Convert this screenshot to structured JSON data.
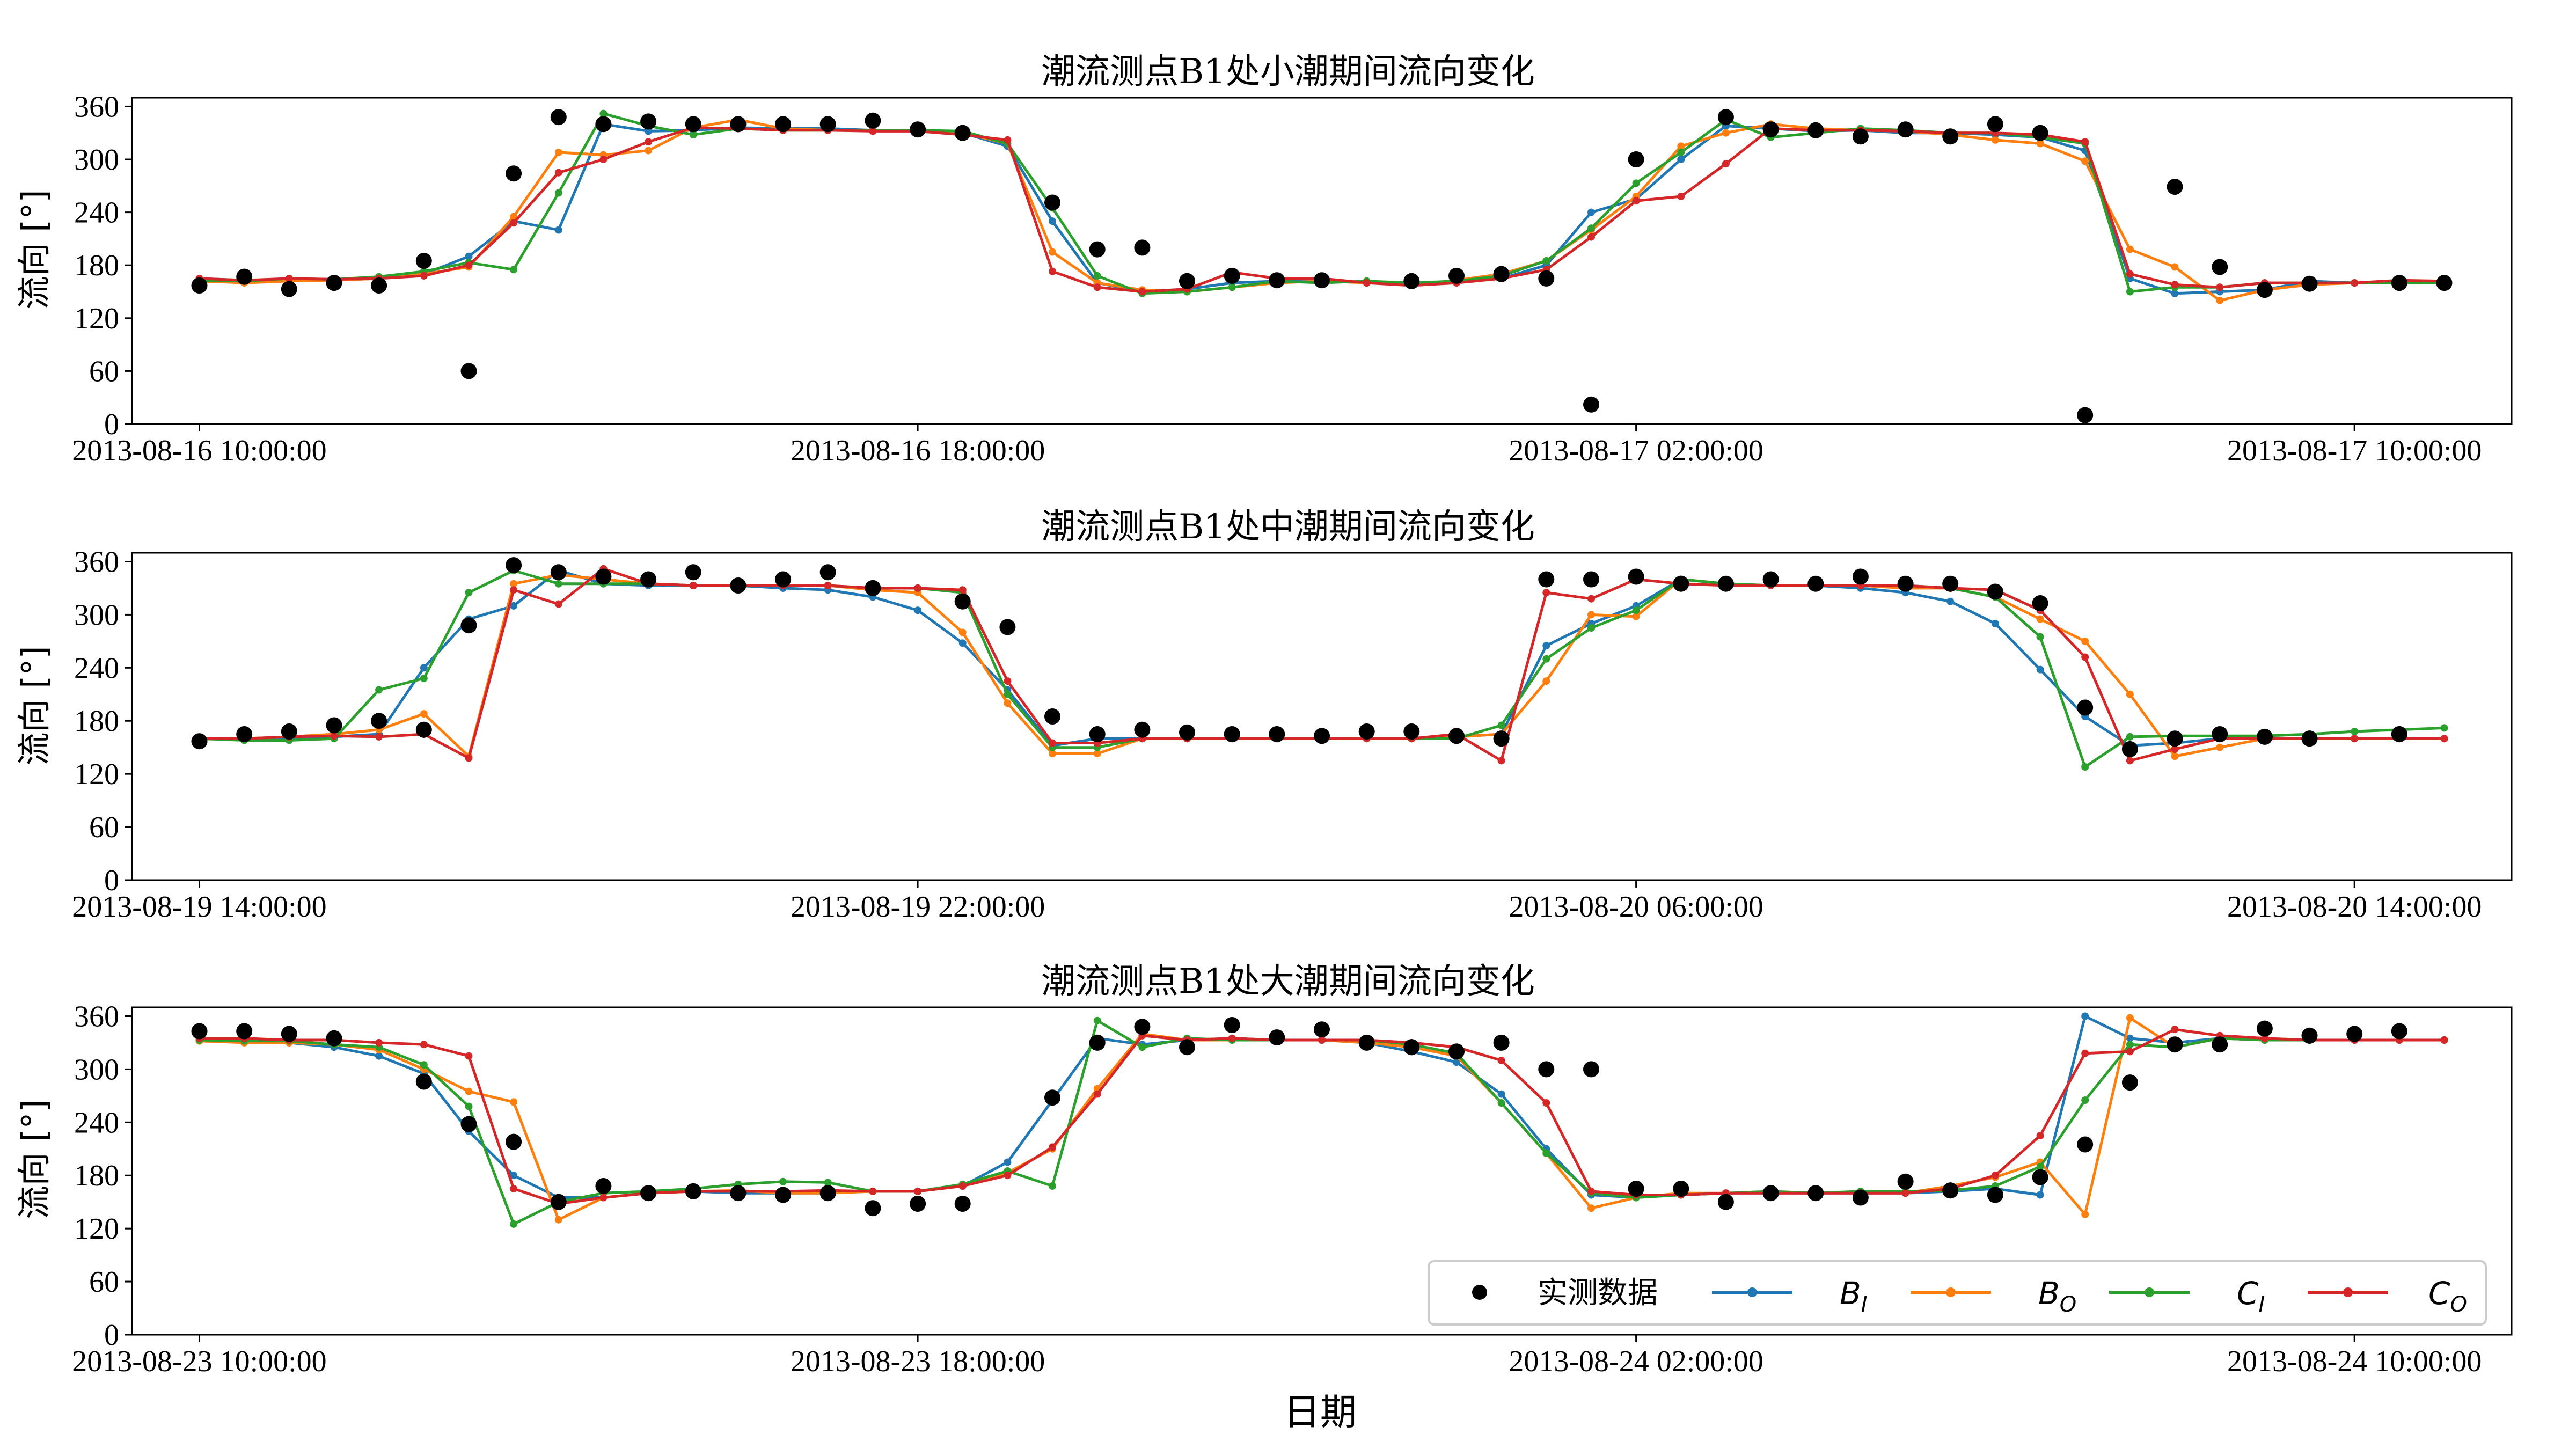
{
  "figure": {
    "xlabel": "日期",
    "ylabel": "流向 [°]",
    "colors": {
      "observed": "#000000",
      "B_I": "#1f77b4",
      "B_O": "#ff7f0e",
      "C_I": "#2ca02c",
      "C_O": "#d62728"
    },
    "legend": {
      "placement": "lower-right of third panel",
      "entries": [
        {
          "key": "observed",
          "label": "实测数据"
        },
        {
          "key": "B_I",
          "base": "B",
          "sub": "I"
        },
        {
          "key": "B_O",
          "base": "B",
          "sub": "O"
        },
        {
          "key": "C_I",
          "base": "C",
          "sub": "I"
        },
        {
          "key": "C_O",
          "base": "C",
          "sub": "O"
        }
      ]
    }
  },
  "chart_data": [
    {
      "type": "line",
      "title": "潮流测点B1处小潮期间流向变化",
      "xlabel": "",
      "ylabel": "流向 [°]",
      "x_unit": "hour (2013-08-16 10:00:00 + k)",
      "xlim": [
        -0.75,
        25.75
      ],
      "ylim": [
        0,
        370
      ],
      "yticks": [
        0,
        60,
        120,
        180,
        240,
        300,
        360
      ],
      "xtick_hours": [
        0,
        8,
        16,
        24
      ],
      "xtick_labels": [
        "2013-08-16 10:00:00",
        "2013-08-16 18:00:00",
        "2013-08-17 02:00:00",
        "2013-08-17 10:00:00"
      ],
      "grid": false,
      "x_hours": [
        0,
        0.5,
        1,
        1.5,
        2,
        2.5,
        3,
        3.5,
        4,
        4.5,
        5,
        5.5,
        6,
        6.5,
        7,
        7.5,
        8,
        8.5,
        9,
        9.5,
        10,
        10.5,
        11,
        11.5,
        12,
        12.5,
        13,
        13.5,
        14,
        14.5,
        15,
        15.5,
        16,
        16.5,
        17,
        17.5,
        18,
        18.5,
        19,
        19.5,
        20,
        20.5,
        21,
        21.5,
        22,
        22.5,
        23,
        23.5,
        24,
        24.5,
        25
      ],
      "observed": [
        157,
        167,
        153,
        160,
        157,
        185,
        60,
        284,
        348,
        340,
        343,
        340,
        340,
        340,
        340,
        344,
        334,
        330,
        251,
        198,
        200,
        162,
        168,
        163,
        163,
        162,
        168,
        170,
        165,
        22,
        300,
        348,
        334,
        333,
        326,
        334,
        326,
        340,
        330,
        10,
        269,
        178,
        152,
        159,
        160,
        160
      ],
      "observed_hours": [
        0,
        0.5,
        1,
        1.5,
        2,
        2.5,
        3,
        3.5,
        4,
        4.5,
        5,
        5.5,
        6,
        6.5,
        7,
        7.5,
        8,
        8.5,
        9.5,
        10,
        10.5,
        11,
        11.5,
        12,
        12.5,
        13.5,
        14,
        14.5,
        15,
        15.5,
        16,
        17,
        17.5,
        18,
        18.5,
        19,
        19.5,
        20,
        20.5,
        21,
        22,
        22.5,
        23,
        23.5,
        24.5,
        25
      ],
      "series": [
        {
          "name": "B_I",
          "values": [
            165,
            163,
            163,
            163,
            165,
            170,
            190,
            230,
            220,
            340,
            332,
            333,
            336,
            335,
            335,
            333,
            332,
            330,
            315,
            230,
            160,
            150,
            153,
            160,
            162,
            163,
            160,
            158,
            162,
            165,
            180,
            240,
            255,
            300,
            338,
            335,
            332,
            333,
            330,
            330,
            328,
            325,
            310,
            165,
            148,
            150,
            152,
            162,
            160,
            160,
            160
          ]
        },
        {
          "name": "B_O",
          "values": [
            162,
            160,
            162,
            163,
            165,
            170,
            178,
            235,
            308,
            305,
            310,
            336,
            345,
            335,
            333,
            333,
            333,
            330,
            318,
            195,
            160,
            152,
            150,
            155,
            160,
            162,
            160,
            158,
            163,
            170,
            185,
            220,
            258,
            315,
            330,
            340,
            335,
            333,
            332,
            328,
            322,
            318,
            298,
            198,
            178,
            140,
            152,
            158,
            160,
            160,
            160
          ]
        },
        {
          "name": "C_I",
          "values": [
            163,
            162,
            165,
            164,
            167,
            173,
            183,
            175,
            262,
            352,
            338,
            328,
            335,
            333,
            333,
            333,
            333,
            332,
            318,
            245,
            168,
            148,
            150,
            155,
            162,
            160,
            162,
            160,
            162,
            168,
            185,
            222,
            273,
            308,
            345,
            325,
            330,
            335,
            333,
            330,
            330,
            325,
            318,
            150,
            155,
            155,
            160,
            160,
            160,
            160,
            160
          ]
        },
        {
          "name": "C_O",
          "values": [
            165,
            163,
            165,
            164,
            165,
            168,
            180,
            228,
            285,
            300,
            320,
            336,
            335,
            333,
            333,
            332,
            332,
            328,
            322,
            173,
            155,
            150,
            153,
            172,
            165,
            165,
            160,
            157,
            160,
            165,
            175,
            212,
            253,
            258,
            295,
            335,
            333,
            333,
            332,
            330,
            330,
            328,
            320,
            170,
            158,
            155,
            160,
            160,
            160,
            163,
            162
          ]
        }
      ]
    },
    {
      "type": "line",
      "title": "潮流测点B1处中潮期间流向变化",
      "xlabel": "",
      "ylabel": "流向 [°]",
      "x_unit": "hour (2013-08-19 14:00:00 + k)",
      "xlim": [
        -0.75,
        25.75
      ],
      "ylim": [
        0,
        370
      ],
      "yticks": [
        0,
        60,
        120,
        180,
        240,
        300,
        360
      ],
      "xtick_hours": [
        0,
        8,
        16,
        24
      ],
      "xtick_labels": [
        "2013-08-19 14:00:00",
        "2013-08-19 22:00:00",
        "2013-08-20 06:00:00",
        "2013-08-20 14:00:00"
      ],
      "grid": false,
      "observed": [
        157,
        165,
        168,
        175,
        180,
        170,
        288,
        356,
        348,
        343,
        340,
        348,
        333,
        340,
        348,
        330,
        315,
        286,
        185,
        165,
        170,
        167,
        165,
        165,
        163,
        168,
        168,
        163,
        160,
        340,
        340,
        343,
        335,
        335,
        340,
        335,
        343,
        335,
        335,
        326,
        313,
        195,
        148,
        160,
        165,
        162,
        160,
        165
      ],
      "observed_hours": [
        0,
        0.5,
        1,
        1.5,
        2,
        2.5,
        3,
        3.5,
        4,
        4.5,
        5,
        5.5,
        6,
        6.5,
        7,
        7.5,
        8.5,
        9,
        9.5,
        10,
        10.5,
        11,
        11.5,
        12,
        12.5,
        13,
        13.5,
        14,
        14.5,
        15,
        15.5,
        16,
        16.5,
        17,
        17.5,
        18,
        18.5,
        19,
        19.5,
        20,
        20.5,
        21,
        21.5,
        22,
        22.5,
        23,
        23.5,
        24.5
      ],
      "series": [
        {
          "name": "B_I",
          "values": [
            160,
            160,
            160,
            162,
            165,
            240,
            295,
            310,
            350,
            335,
            333,
            333,
            333,
            330,
            328,
            320,
            305,
            268,
            215,
            152,
            160,
            160,
            160,
            160,
            160,
            160,
            160,
            160,
            162,
            165,
            265,
            290,
            310,
            340,
            335,
            333,
            333,
            330,
            325,
            315,
            290,
            238,
            185,
            152,
            155,
            160,
            160,
            160,
            160,
            160,
            160
          ]
        },
        {
          "name": "B_O",
          "values": [
            160,
            160,
            162,
            165,
            170,
            188,
            140,
            335,
            345,
            340,
            335,
            333,
            333,
            333,
            333,
            328,
            325,
            280,
            200,
            143,
            143,
            160,
            160,
            160,
            160,
            160,
            160,
            160,
            162,
            165,
            225,
            300,
            298,
            340,
            335,
            333,
            333,
            333,
            330,
            330,
            320,
            295,
            270,
            210,
            140,
            150,
            160,
            160,
            160,
            160,
            160
          ]
        },
        {
          "name": "C_I",
          "values": [
            160,
            158,
            158,
            160,
            215,
            228,
            325,
            350,
            335,
            335,
            335,
            333,
            333,
            333,
            333,
            330,
            330,
            325,
            210,
            150,
            150,
            160,
            160,
            160,
            160,
            160,
            160,
            160,
            160,
            175,
            250,
            285,
            305,
            340,
            335,
            333,
            333,
            333,
            333,
            330,
            320,
            275,
            128,
            162,
            163,
            163,
            163,
            165,
            168,
            170,
            172
          ]
        },
        {
          "name": "C_O",
          "values": [
            160,
            160,
            162,
            163,
            162,
            165,
            138,
            328,
            312,
            352,
            335,
            333,
            333,
            333,
            333,
            330,
            330,
            328,
            225,
            155,
            155,
            160,
            160,
            160,
            160,
            160,
            160,
            160,
            165,
            135,
            325,
            318,
            340,
            335,
            333,
            333,
            333,
            333,
            333,
            330,
            328,
            305,
            252,
            135,
            148,
            160,
            160,
            160,
            160,
            160,
            160
          ]
        }
      ]
    },
    {
      "type": "line",
      "title": "潮流测点B1处大潮期间流向变化",
      "xlabel": "日期",
      "ylabel": "流向 [°]",
      "x_unit": "hour (2013-08-23 10:00:00 + k)",
      "xlim": [
        -0.75,
        25.75
      ],
      "ylim": [
        0,
        370
      ],
      "yticks": [
        0,
        60,
        120,
        180,
        240,
        300,
        360
      ],
      "xtick_hours": [
        0,
        8,
        16,
        24
      ],
      "xtick_labels": [
        "2013-08-23 10:00:00",
        "2013-08-23 18:00:00",
        "2013-08-24 02:00:00",
        "2013-08-24 10:00:00"
      ],
      "grid": false,
      "observed": [
        343,
        343,
        340,
        335,
        286,
        238,
        218,
        150,
        168,
        160,
        162,
        160,
        158,
        160,
        143,
        148,
        148,
        268,
        330,
        348,
        325,
        350,
        336,
        345,
        330,
        325,
        320,
        330,
        300,
        300,
        165,
        165,
        150,
        160,
        160,
        155,
        173,
        163,
        158,
        178,
        215,
        285,
        328,
        328,
        346,
        338,
        340,
        343
      ],
      "observed_hours": [
        0,
        0.5,
        1,
        1.5,
        2.5,
        3,
        3.5,
        4,
        4.5,
        5,
        5.5,
        6,
        6.5,
        7,
        7.5,
        8,
        8.5,
        9.5,
        10,
        10.5,
        11,
        11.5,
        12,
        12.5,
        13,
        13.5,
        14,
        14.5,
        15,
        15.5,
        16,
        16.5,
        17,
        17.5,
        18,
        18.5,
        19,
        19.5,
        20,
        20.5,
        21,
        21.5,
        22,
        22.5,
        23,
        23.5,
        24,
        24.5
      ],
      "series": [
        {
          "name": "B_I",
          "values": [
            332,
            332,
            330,
            325,
            315,
            295,
            230,
            180,
            155,
            155,
            160,
            162,
            160,
            160,
            160,
            162,
            162,
            168,
            195,
            265,
            335,
            328,
            333,
            335,
            333,
            333,
            330,
            320,
            308,
            272,
            210,
            158,
            155,
            158,
            160,
            160,
            160,
            160,
            160,
            162,
            165,
            158,
            360,
            335,
            330,
            335,
            333,
            333,
            333,
            333,
            333
          ]
        },
        {
          "name": "B_O",
          "values": [
            332,
            330,
            330,
            328,
            322,
            300,
            275,
            263,
            130,
            155,
            160,
            162,
            163,
            160,
            160,
            162,
            162,
            168,
            183,
            210,
            278,
            340,
            333,
            333,
            333,
            333,
            330,
            325,
            315,
            262,
            205,
            143,
            155,
            160,
            160,
            160,
            160,
            160,
            160,
            168,
            178,
            195,
            136,
            358,
            325,
            335,
            333,
            333,
            333,
            333,
            333
          ]
        },
        {
          "name": "C_I",
          "values": [
            333,
            332,
            332,
            328,
            325,
            305,
            258,
            125,
            150,
            160,
            162,
            165,
            170,
            173,
            172,
            162,
            162,
            170,
            185,
            168,
            355,
            325,
            335,
            333,
            333,
            333,
            333,
            328,
            318,
            262,
            205,
            160,
            155,
            158,
            160,
            162,
            160,
            162,
            162,
            163,
            168,
            190,
            265,
            328,
            325,
            335,
            333,
            333,
            333,
            333,
            333
          ]
        },
        {
          "name": "C_O",
          "values": [
            335,
            335,
            333,
            333,
            330,
            328,
            315,
            165,
            148,
            155,
            160,
            162,
            162,
            162,
            163,
            162,
            162,
            168,
            180,
            212,
            272,
            338,
            333,
            335,
            333,
            333,
            333,
            330,
            325,
            310,
            262,
            162,
            158,
            158,
            160,
            160,
            160,
            160,
            160,
            165,
            180,
            225,
            318,
            320,
            345,
            338,
            335,
            333,
            333,
            333,
            333
          ]
        }
      ]
    }
  ]
}
